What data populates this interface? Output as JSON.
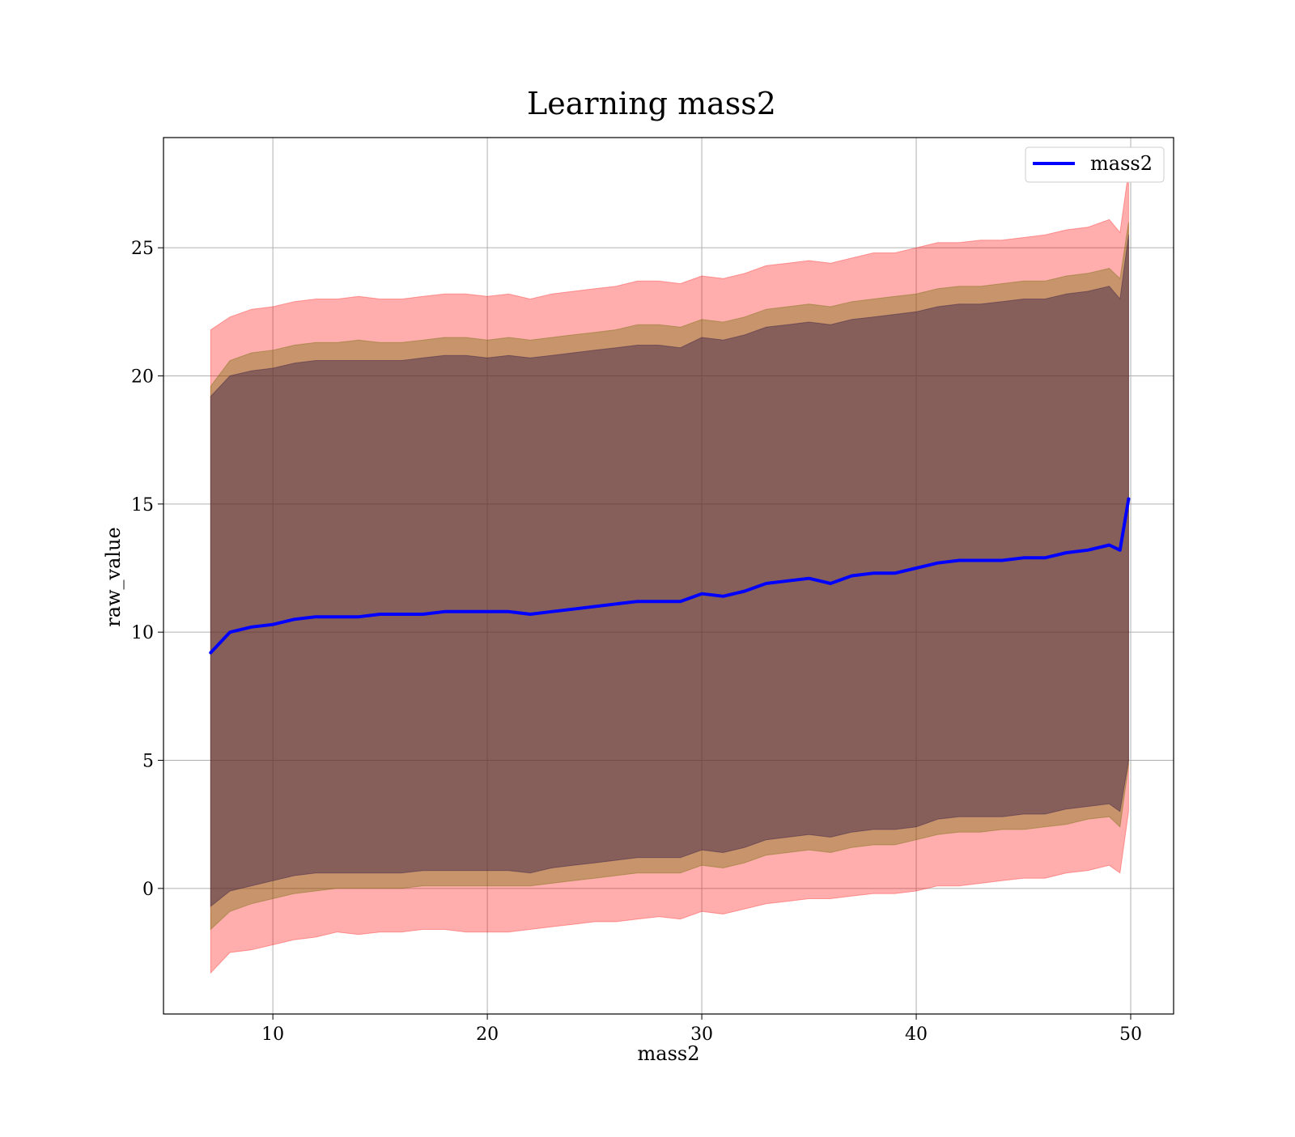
{
  "chart_data": {
    "type": "line",
    "title": "Learning mass2",
    "xlabel": "mass2",
    "ylabel": "raw_value",
    "xlim": [
      4.9,
      52.0
    ],
    "ylim": [
      -4.9,
      29.3
    ],
    "x_ticks": [
      10,
      20,
      30,
      40,
      50
    ],
    "y_ticks": [
      0,
      5,
      10,
      15,
      20,
      25
    ],
    "x_tick_labels": [
      "10",
      "20",
      "30",
      "40",
      "50"
    ],
    "y_tick_labels": [
      "0",
      "5",
      "10",
      "15",
      "20",
      "25"
    ],
    "grid": true,
    "legend": {
      "position": "top-right",
      "entries": [
        "mass2"
      ]
    },
    "colors": {
      "line": "#0000ff",
      "band_outer": "#ff0000",
      "band_middle": "#6b6b00",
      "band_inner": "#3a1e46",
      "grid": "#b0b0b0"
    },
    "series": [
      {
        "name": "mass2",
        "x": [
          7.1,
          8,
          9,
          10,
          11,
          12,
          13,
          14,
          15,
          16,
          17,
          18,
          19,
          20,
          21,
          22,
          23,
          24,
          25,
          26,
          27,
          28,
          29,
          30,
          31,
          32,
          33,
          34,
          35,
          36,
          37,
          38,
          39,
          40,
          41,
          42,
          43,
          44,
          45,
          46,
          47,
          48,
          49,
          49.5,
          49.9
        ],
        "y": [
          9.2,
          10.0,
          10.2,
          10.3,
          10.5,
          10.6,
          10.6,
          10.6,
          10.7,
          10.7,
          10.7,
          10.8,
          10.8,
          10.8,
          10.8,
          10.7,
          10.8,
          10.9,
          11.0,
          11.1,
          11.2,
          11.2,
          11.2,
          11.5,
          11.4,
          11.6,
          11.9,
          12.0,
          12.1,
          11.9,
          12.2,
          12.3,
          12.3,
          12.5,
          12.7,
          12.8,
          12.8,
          12.8,
          12.9,
          12.9,
          13.1,
          13.2,
          13.4,
          13.2,
          15.2
        ]
      }
    ],
    "bands": [
      {
        "label": "outer",
        "x": [
          7.1,
          8,
          9,
          10,
          11,
          12,
          13,
          14,
          15,
          16,
          17,
          18,
          19,
          20,
          21,
          22,
          23,
          24,
          25,
          26,
          27,
          28,
          29,
          30,
          31,
          32,
          33,
          34,
          35,
          36,
          37,
          38,
          39,
          40,
          41,
          42,
          43,
          44,
          45,
          46,
          47,
          48,
          49,
          49.5,
          49.9
        ],
        "lower": [
          -3.3,
          -2.5,
          -2.4,
          -2.2,
          -2.0,
          -1.9,
          -1.7,
          -1.8,
          -1.7,
          -1.7,
          -1.6,
          -1.6,
          -1.7,
          -1.7,
          -1.7,
          -1.6,
          -1.5,
          -1.4,
          -1.3,
          -1.3,
          -1.2,
          -1.1,
          -1.2,
          -0.9,
          -1.0,
          -0.8,
          -0.6,
          -0.5,
          -0.4,
          -0.4,
          -0.3,
          -0.2,
          -0.2,
          -0.1,
          0.1,
          0.1,
          0.2,
          0.3,
          0.4,
          0.4,
          0.6,
          0.7,
          0.9,
          0.6,
          3.0
        ],
        "upper": [
          21.8,
          22.3,
          22.6,
          22.7,
          22.9,
          23.0,
          23.0,
          23.1,
          23.0,
          23.0,
          23.1,
          23.2,
          23.2,
          23.1,
          23.2,
          23.0,
          23.2,
          23.3,
          23.4,
          23.5,
          23.7,
          23.7,
          23.6,
          23.9,
          23.8,
          24.0,
          24.3,
          24.4,
          24.5,
          24.4,
          24.6,
          24.8,
          24.8,
          25.0,
          25.2,
          25.2,
          25.3,
          25.3,
          25.4,
          25.5,
          25.7,
          25.8,
          26.1,
          25.6,
          28.0
        ]
      },
      {
        "label": "middle",
        "x": [
          7.1,
          8,
          9,
          10,
          11,
          12,
          13,
          14,
          15,
          16,
          17,
          18,
          19,
          20,
          21,
          22,
          23,
          24,
          25,
          26,
          27,
          28,
          29,
          30,
          31,
          32,
          33,
          34,
          35,
          36,
          37,
          38,
          39,
          40,
          41,
          42,
          43,
          44,
          45,
          46,
          47,
          48,
          49,
          49.5,
          49.9
        ],
        "lower": [
          -1.6,
          -0.9,
          -0.6,
          -0.4,
          -0.2,
          -0.1,
          0.0,
          0.0,
          0.0,
          0.0,
          0.1,
          0.1,
          0.1,
          0.1,
          0.1,
          0.1,
          0.2,
          0.3,
          0.4,
          0.5,
          0.6,
          0.6,
          0.6,
          0.9,
          0.8,
          1.0,
          1.3,
          1.4,
          1.5,
          1.4,
          1.6,
          1.7,
          1.7,
          1.9,
          2.1,
          2.2,
          2.2,
          2.3,
          2.3,
          2.4,
          2.5,
          2.7,
          2.8,
          2.4,
          4.8
        ],
        "upper": [
          19.6,
          20.6,
          20.9,
          21.0,
          21.2,
          21.3,
          21.3,
          21.4,
          21.3,
          21.3,
          21.4,
          21.5,
          21.5,
          21.4,
          21.5,
          21.4,
          21.5,
          21.6,
          21.7,
          21.8,
          22.0,
          22.0,
          21.9,
          22.2,
          22.1,
          22.3,
          22.6,
          22.7,
          22.8,
          22.7,
          22.9,
          23.0,
          23.1,
          23.2,
          23.4,
          23.5,
          23.5,
          23.6,
          23.7,
          23.7,
          23.9,
          24.0,
          24.2,
          23.8,
          26.0
        ]
      },
      {
        "label": "inner",
        "x": [
          7.1,
          8,
          9,
          10,
          11,
          12,
          13,
          14,
          15,
          16,
          17,
          18,
          19,
          20,
          21,
          22,
          23,
          24,
          25,
          26,
          27,
          28,
          29,
          30,
          31,
          32,
          33,
          34,
          35,
          36,
          37,
          38,
          39,
          40,
          41,
          42,
          43,
          44,
          45,
          46,
          47,
          48,
          49,
          49.5,
          49.9
        ],
        "lower": [
          -0.7,
          -0.1,
          0.1,
          0.3,
          0.5,
          0.6,
          0.6,
          0.6,
          0.6,
          0.6,
          0.7,
          0.7,
          0.7,
          0.7,
          0.7,
          0.6,
          0.8,
          0.9,
          1.0,
          1.1,
          1.2,
          1.2,
          1.2,
          1.5,
          1.4,
          1.6,
          1.9,
          2.0,
          2.1,
          2.0,
          2.2,
          2.3,
          2.3,
          2.4,
          2.7,
          2.8,
          2.8,
          2.8,
          2.9,
          2.9,
          3.1,
          3.2,
          3.3,
          3.0,
          5.0
        ],
        "upper": [
          19.2,
          20.0,
          20.2,
          20.3,
          20.5,
          20.6,
          20.6,
          20.6,
          20.6,
          20.6,
          20.7,
          20.8,
          20.8,
          20.7,
          20.8,
          20.7,
          20.8,
          20.9,
          21.0,
          21.1,
          21.2,
          21.2,
          21.1,
          21.5,
          21.4,
          21.6,
          21.9,
          22.0,
          22.1,
          22.0,
          22.2,
          22.3,
          22.4,
          22.5,
          22.7,
          22.8,
          22.8,
          22.9,
          23.0,
          23.0,
          23.2,
          23.3,
          23.5,
          23.0,
          25.5
        ]
      }
    ]
  }
}
